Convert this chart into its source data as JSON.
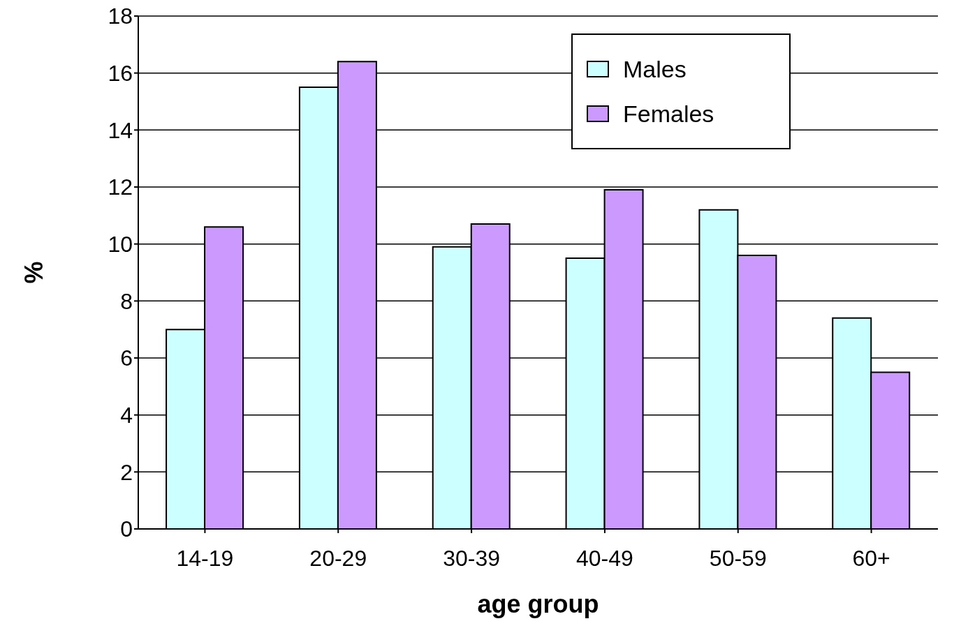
{
  "chart_data": {
    "type": "bar",
    "xlabel": "age group",
    "ylabel": "%",
    "categories": [
      "14-19",
      "20-29",
      "30-39",
      "40-49",
      "50-59",
      "60+"
    ],
    "series": [
      {
        "name": "Males",
        "color": "#ccffff",
        "values": [
          7.0,
          15.5,
          9.9,
          9.5,
          11.2,
          7.4
        ]
      },
      {
        "name": "Females",
        "color": "#cc99ff",
        "values": [
          10.6,
          16.4,
          10.7,
          11.9,
          9.6,
          5.5
        ]
      }
    ],
    "ylim": [
      0,
      18
    ],
    "yticks": [
      0,
      2,
      4,
      6,
      8,
      10,
      12,
      14,
      16,
      18
    ],
    "grid": "y",
    "legend": "top right"
  }
}
